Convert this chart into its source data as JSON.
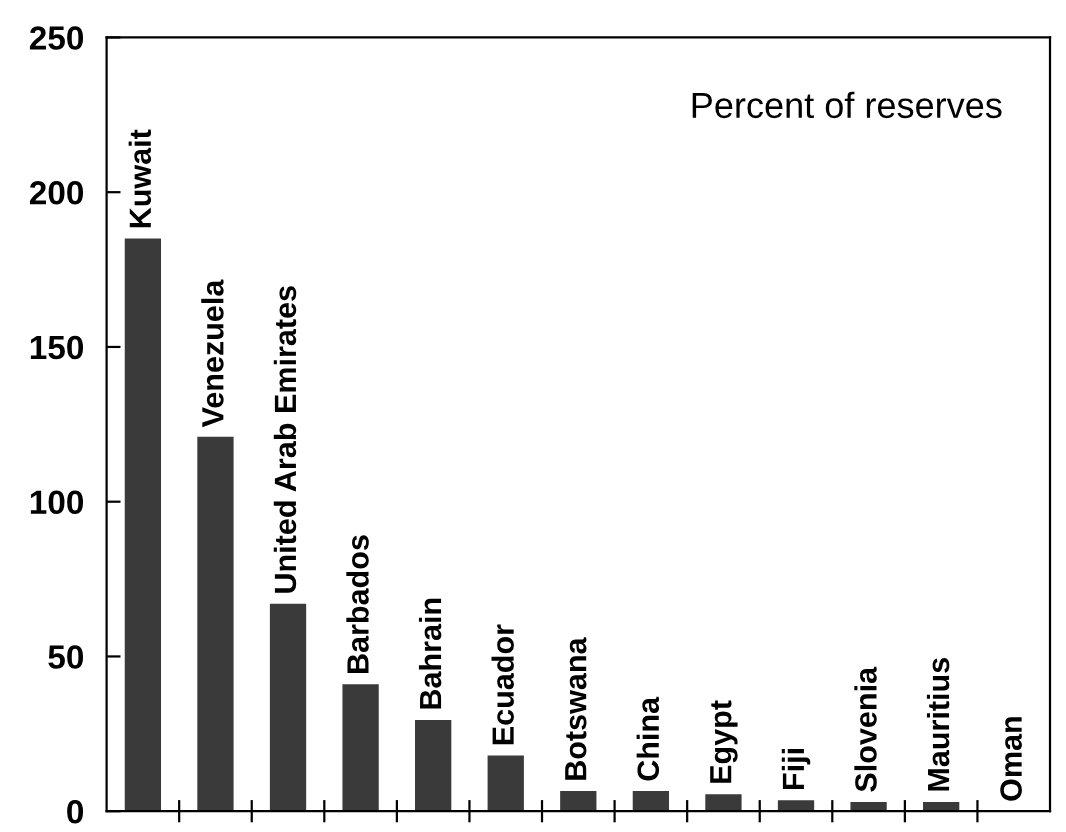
{
  "chart_data": {
    "type": "bar",
    "categories": [
      "Kuwait",
      "Venezuela",
      "United Arab Emirates",
      "Barbados",
      "Bahrain",
      "Ecuador",
      "Botswana",
      "China",
      "Egypt",
      "Fiji",
      "Slovenia",
      "Mauritius",
      "Oman"
    ],
    "values": [
      185,
      121,
      67,
      41,
      29.5,
      18,
      6.5,
      6.5,
      5.5,
      3.5,
      3,
      3,
      0
    ],
    "color": "#3a3a3a",
    "ylim": [
      0,
      250
    ],
    "yticks": [
      0,
      50,
      100,
      150,
      200,
      250
    ],
    "grid": false,
    "legend": false,
    "annotations": [
      "Percent of reserves"
    ]
  }
}
